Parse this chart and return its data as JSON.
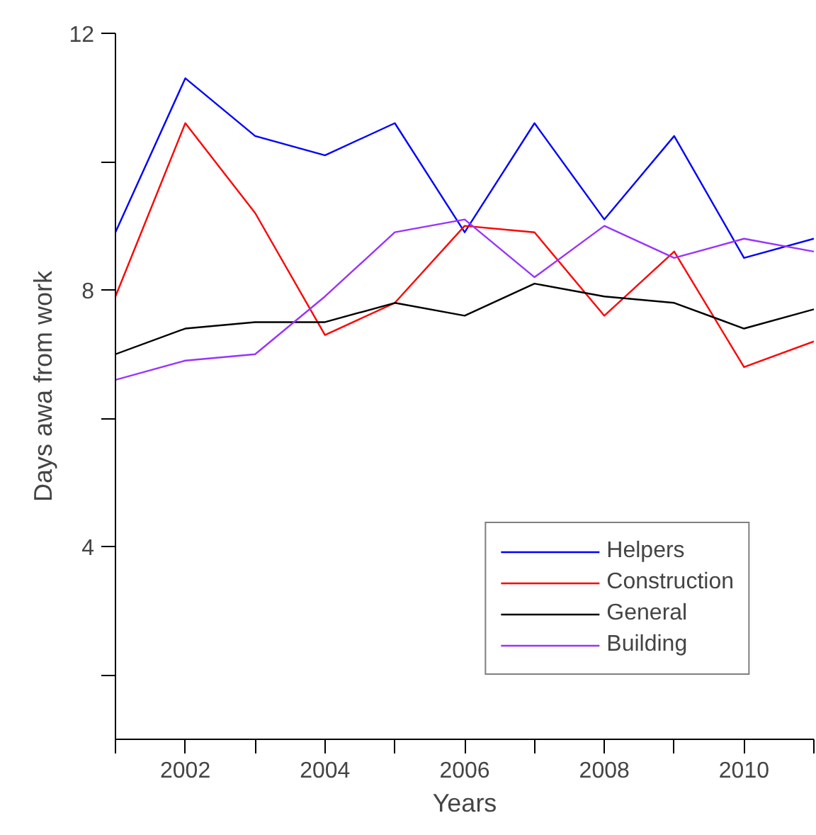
{
  "chart_data": {
    "type": "line",
    "xlabel": "Years",
    "ylabel": "Days awa from work",
    "x": [
      2001,
      2002,
      2003,
      2004,
      2005,
      2006,
      2007,
      2008,
      2009,
      2010,
      2011
    ],
    "series": [
      {
        "name": "Helpers",
        "color": "#0000ff",
        "values": [
          8.9,
          11.3,
          10.4,
          10.1,
          10.6,
          8.9,
          10.6,
          9.1,
          10.4,
          8.5,
          8.8
        ]
      },
      {
        "name": "Construction",
        "color": "#ff0000",
        "values": [
          7.9,
          10.6,
          9.2,
          7.3,
          7.8,
          9.0,
          8.9,
          7.6,
          8.6,
          6.8,
          7.2
        ]
      },
      {
        "name": "General",
        "color": "#000000",
        "values": [
          7.0,
          7.4,
          7.5,
          7.5,
          7.8,
          7.6,
          8.1,
          7.9,
          7.8,
          7.4,
          7.7
        ]
      },
      {
        "name": "Building",
        "color": "#9933ff",
        "values": [
          6.6,
          6.9,
          7.0,
          7.9,
          8.9,
          9.1,
          8.2,
          9.0,
          8.5,
          8.8,
          8.6
        ]
      }
    ],
    "xlim": [
      2001,
      2011
    ],
    "xticks": [
      {
        "value": 2001,
        "label": null
      },
      2002,
      {
        "value": 2003,
        "label": null
      },
      2004,
      {
        "value": 2005,
        "label": null
      },
      2006,
      {
        "value": 2007,
        "label": null
      },
      2008,
      {
        "value": 2009,
        "label": null
      },
      2010,
      {
        "value": 2011,
        "label": null
      }
    ],
    "ylim": [
      1,
      12
    ],
    "yticks": [
      {
        "value": 2,
        "label": null
      },
      4,
      {
        "value": 6,
        "label": null
      },
      8,
      {
        "value": 10,
        "label": null
      },
      12
    ],
    "grid": false,
    "legend": "bottom right",
    "marker": "none",
    "line_style": "solid"
  }
}
